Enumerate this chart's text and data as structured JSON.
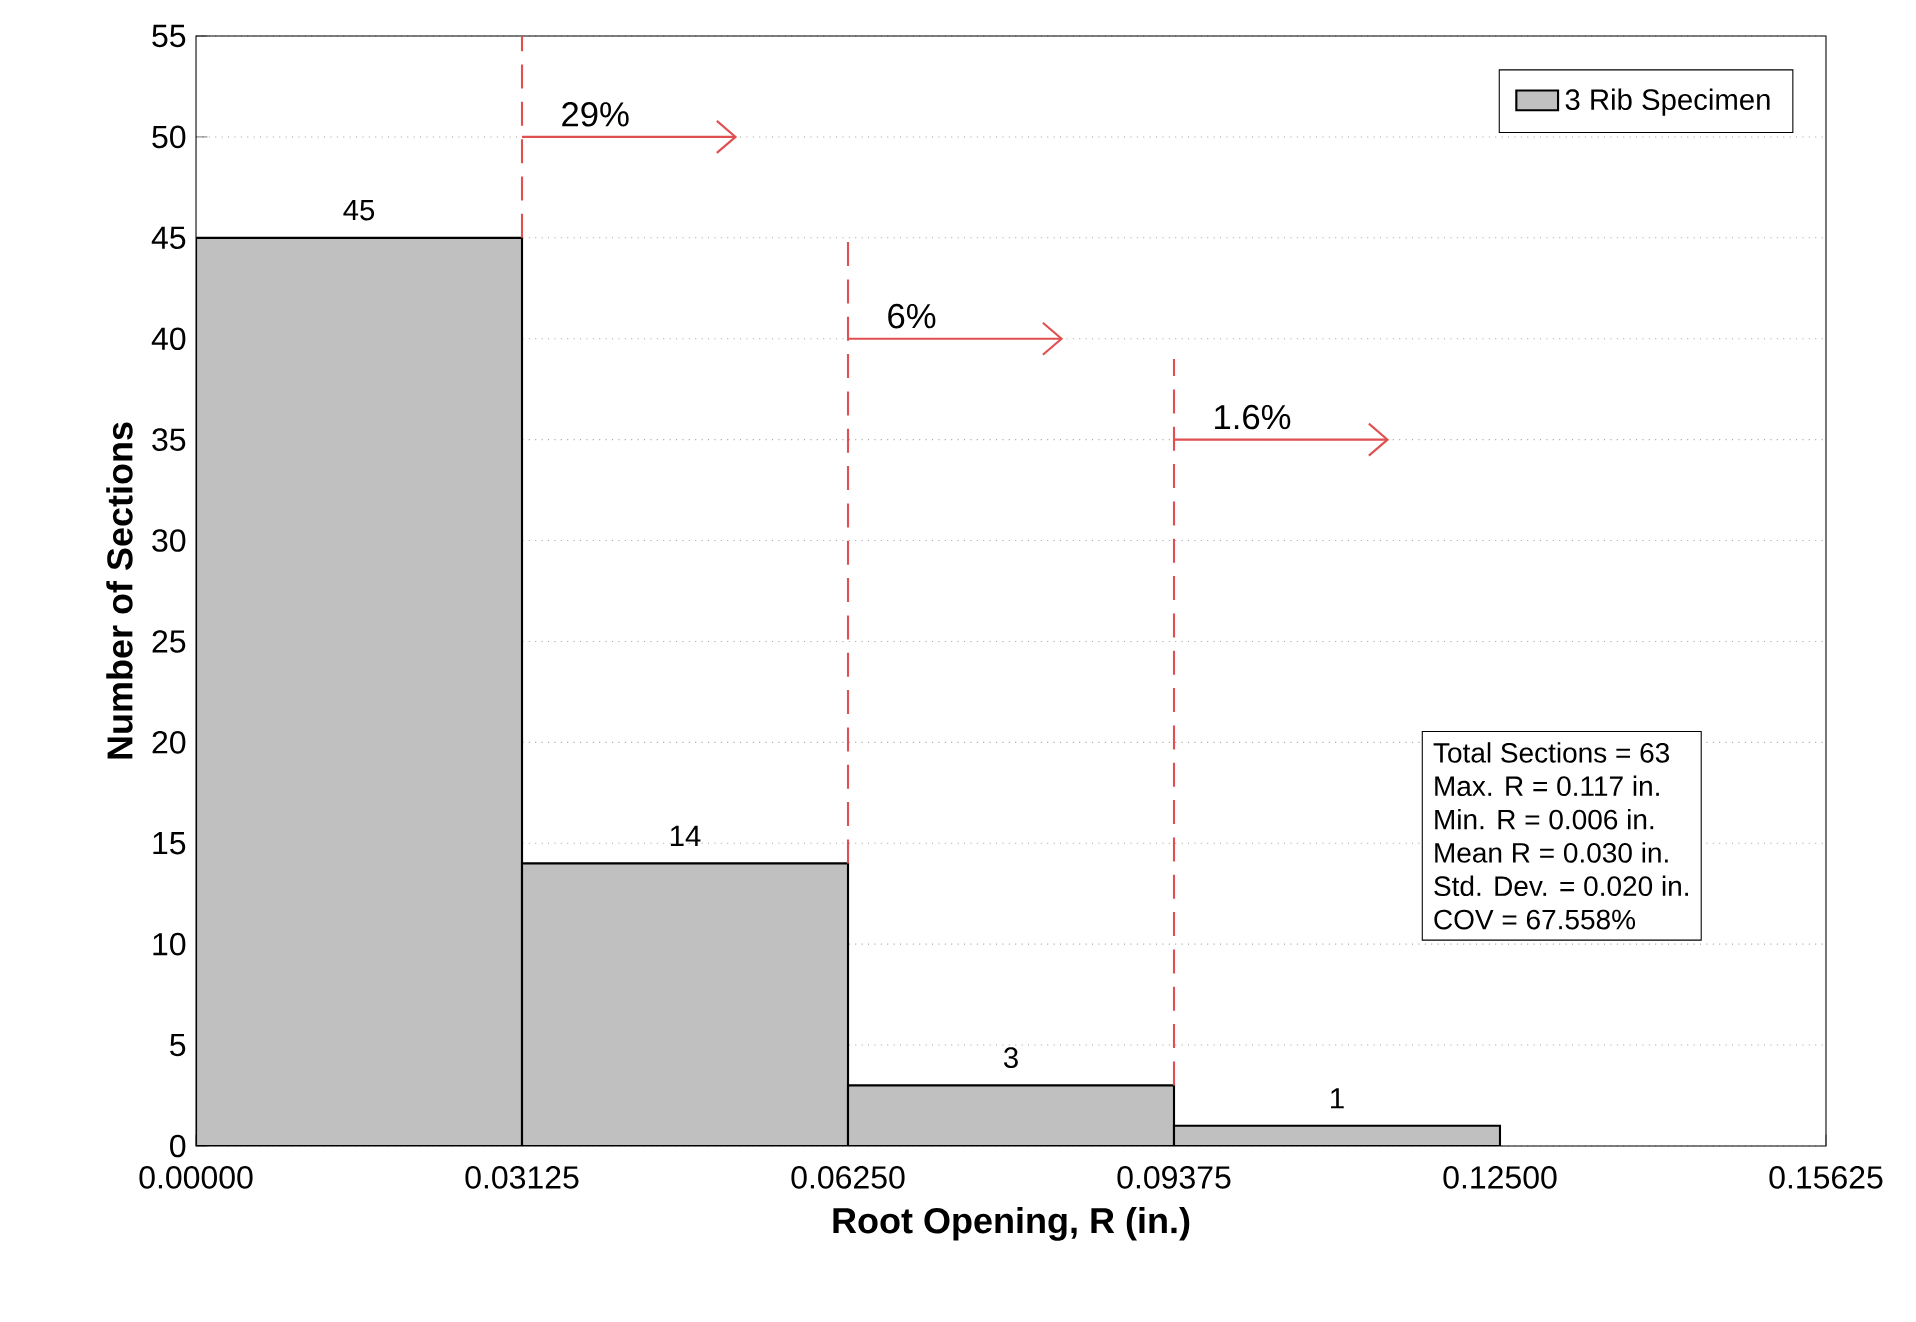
{
  "chart_data": {
    "type": "histogram",
    "xlabel": "Root Opening, R (in.)",
    "ylabel": "Number of Sections",
    "bins": [
      0,
      0.03125,
      0.0625,
      0.09375,
      0.125
    ],
    "series": [
      {
        "name": "3 Rib Specimen",
        "color": "#c0c0c0",
        "values": [
          45,
          14,
          3,
          1
        ]
      }
    ],
    "xlim": [
      0,
      0.15625
    ],
    "xticks": [
      {
        "value": 0,
        "label": "0.00000"
      },
      {
        "value": 0.03125,
        "label": "0.03125"
      },
      {
        "value": 0.0625,
        "label": "0.06250"
      },
      {
        "value": 0.09375,
        "label": "0.09375"
      },
      {
        "value": 0.125,
        "label": "0.12500"
      },
      {
        "value": 0.15625,
        "label": "0.15625"
      }
    ],
    "ylim": [
      0,
      55
    ],
    "yticks": [
      0,
      5,
      10,
      15,
      20,
      25,
      30,
      35,
      40,
      45,
      50,
      55
    ],
    "grid": "y",
    "legend": "top right",
    "data_labels": true,
    "ref_lines": [
      {
        "axis": "x",
        "value": 0.03125,
        "color": "#e05050",
        "line_style": "dashed"
      },
      {
        "axis": "x",
        "value": 0.0625,
        "color": "#e05050",
        "line_style": "dashed"
      },
      {
        "axis": "x",
        "value": 0.09375,
        "color": "#e05050",
        "line_style": "dashed"
      }
    ],
    "annotations": [
      {
        "text": "29%",
        "x": 0.03125,
        "y": 50
      },
      {
        "text": "6%",
        "x": 0.0625,
        "y": 40
      },
      {
        "text": "1.6%",
        "x": 0.09375,
        "y": 35
      },
      "Total Sections = 63",
      "Max. R = 0.117 in.",
      "Min. R = 0.006 in.",
      "Mean R = 0.030 in.",
      "Std. Dev. = 0.020 in.",
      "COV = 67.558%"
    ]
  }
}
